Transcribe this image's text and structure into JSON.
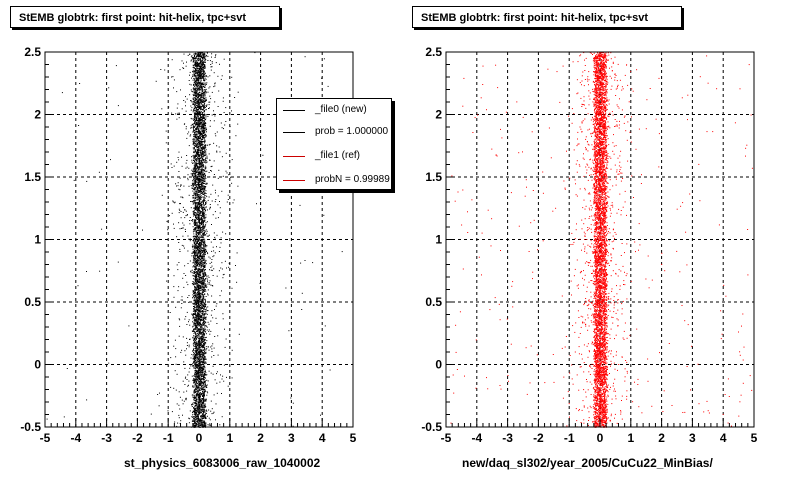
{
  "colors": {
    "new": "#000000",
    "ref": "#ff0000"
  },
  "legend": [
    {
      "label": "_file0 (new)",
      "color": "#000000"
    },
    {
      "label": "prob = 1.000000",
      "color": "#000000"
    },
    {
      "label": "_file1 (ref)",
      "color": "#cc0000"
    },
    {
      "label": "probN = 0.99989",
      "color": "#cc0000"
    }
  ],
  "chart_data": [
    {
      "type": "scatter",
      "title": "StEMB globtrk: first point: hit-helix, tpc+svt",
      "xlabel": "st_physics_6083006_raw_1040002",
      "ylabel": "",
      "xlim": [
        -5,
        5
      ],
      "ylim": [
        -0.5,
        2.5
      ],
      "x_ticks": [
        "-5",
        "-4",
        "-3",
        "-2",
        "-1",
        "0",
        "1",
        "2",
        "3",
        "4",
        "5"
      ],
      "y_ticks": [
        "-0.5",
        "0",
        "0.5",
        "1",
        "1.5",
        "2",
        "2.5"
      ],
      "grid": true,
      "marker_color": "#000000",
      "series": [
        {
          "name": "_file0 (new)",
          "center_x": 0.0,
          "core_halfwidth_x": 0.2,
          "y_range": [
            -0.5,
            2.5
          ],
          "description": "dense vertical band at x≈0 with sparse scatter between x≈-1 and 1"
        }
      ]
    },
    {
      "type": "scatter",
      "title": "StEMB globtrk: first point: hit-helix, tpc+svt",
      "xlabel": "new/daq_sl302/year_2005/CuCu22_MinBias/",
      "ylabel": "",
      "xlim": [
        -5,
        5
      ],
      "ylim": [
        -0.5,
        2.5
      ],
      "x_ticks": [
        "-5",
        "-4",
        "-3",
        "-2",
        "-1",
        "0",
        "1",
        "2",
        "3",
        "4",
        "5"
      ],
      "y_ticks": [
        "-0.5",
        "0",
        "0.5",
        "1",
        "1.5",
        "2",
        "2.5"
      ],
      "grid": true,
      "marker_color": "#ff0000",
      "series": [
        {
          "name": "_file1 (ref)",
          "center_x": 0.0,
          "core_halfwidth_x": 0.2,
          "y_range": [
            -0.5,
            2.5
          ],
          "description": "dense vertical band at x≈0 with wider sparse scatter between x≈-5 and 5"
        }
      ]
    }
  ]
}
